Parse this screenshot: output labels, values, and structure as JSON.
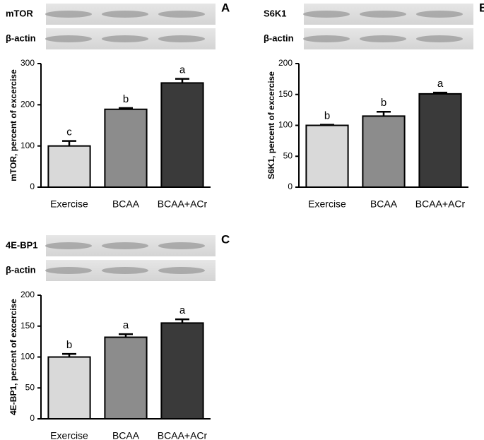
{
  "chart_data": [
    {
      "type": "bar",
      "panel": "A",
      "blot_labels": [
        "mTOR",
        "β-actin"
      ],
      "ylabel": "mTOR, percent of excercise",
      "categories": [
        "Exercise",
        "BCAA",
        "BCAA+ACr"
      ],
      "values": [
        100,
        189,
        253
      ],
      "errors": [
        12,
        3,
        10
      ],
      "annotations": [
        "c",
        "b",
        "a"
      ],
      "colors": [
        "#d9d9d9",
        "#8c8c8c",
        "#3a3a3a"
      ],
      "ylim": [
        0,
        300
      ],
      "yticks": [
        0,
        100,
        200,
        300
      ]
    },
    {
      "type": "bar",
      "panel": "B",
      "blot_labels": [
        "S6K1",
        "β-actin"
      ],
      "ylabel": "S6K1, percent of excercise",
      "categories": [
        "Exercise",
        "BCAA",
        "BCAA+ACr"
      ],
      "values": [
        100,
        115,
        151
      ],
      "errors": [
        1,
        7,
        2
      ],
      "annotations": [
        "b",
        "b",
        "a"
      ],
      "colors": [
        "#d9d9d9",
        "#8c8c8c",
        "#3a3a3a"
      ],
      "ylim": [
        0,
        200
      ],
      "yticks": [
        0,
        50,
        100,
        150,
        200
      ]
    },
    {
      "type": "bar",
      "panel": "C",
      "blot_labels": [
        "4E-BP1",
        "β-actin"
      ],
      "ylabel": "4E-BP1, percent of excercise",
      "categories": [
        "Exercise",
        "BCAA",
        "BCAA+ACr"
      ],
      "values": [
        100,
        132,
        155
      ],
      "errors": [
        5,
        5,
        6
      ],
      "annotations": [
        "b",
        "a",
        "a"
      ],
      "colors": [
        "#d9d9d9",
        "#8c8c8c",
        "#3a3a3a"
      ],
      "ylim": [
        0,
        200
      ],
      "yticks": [
        0,
        50,
        100,
        150,
        200
      ]
    }
  ]
}
